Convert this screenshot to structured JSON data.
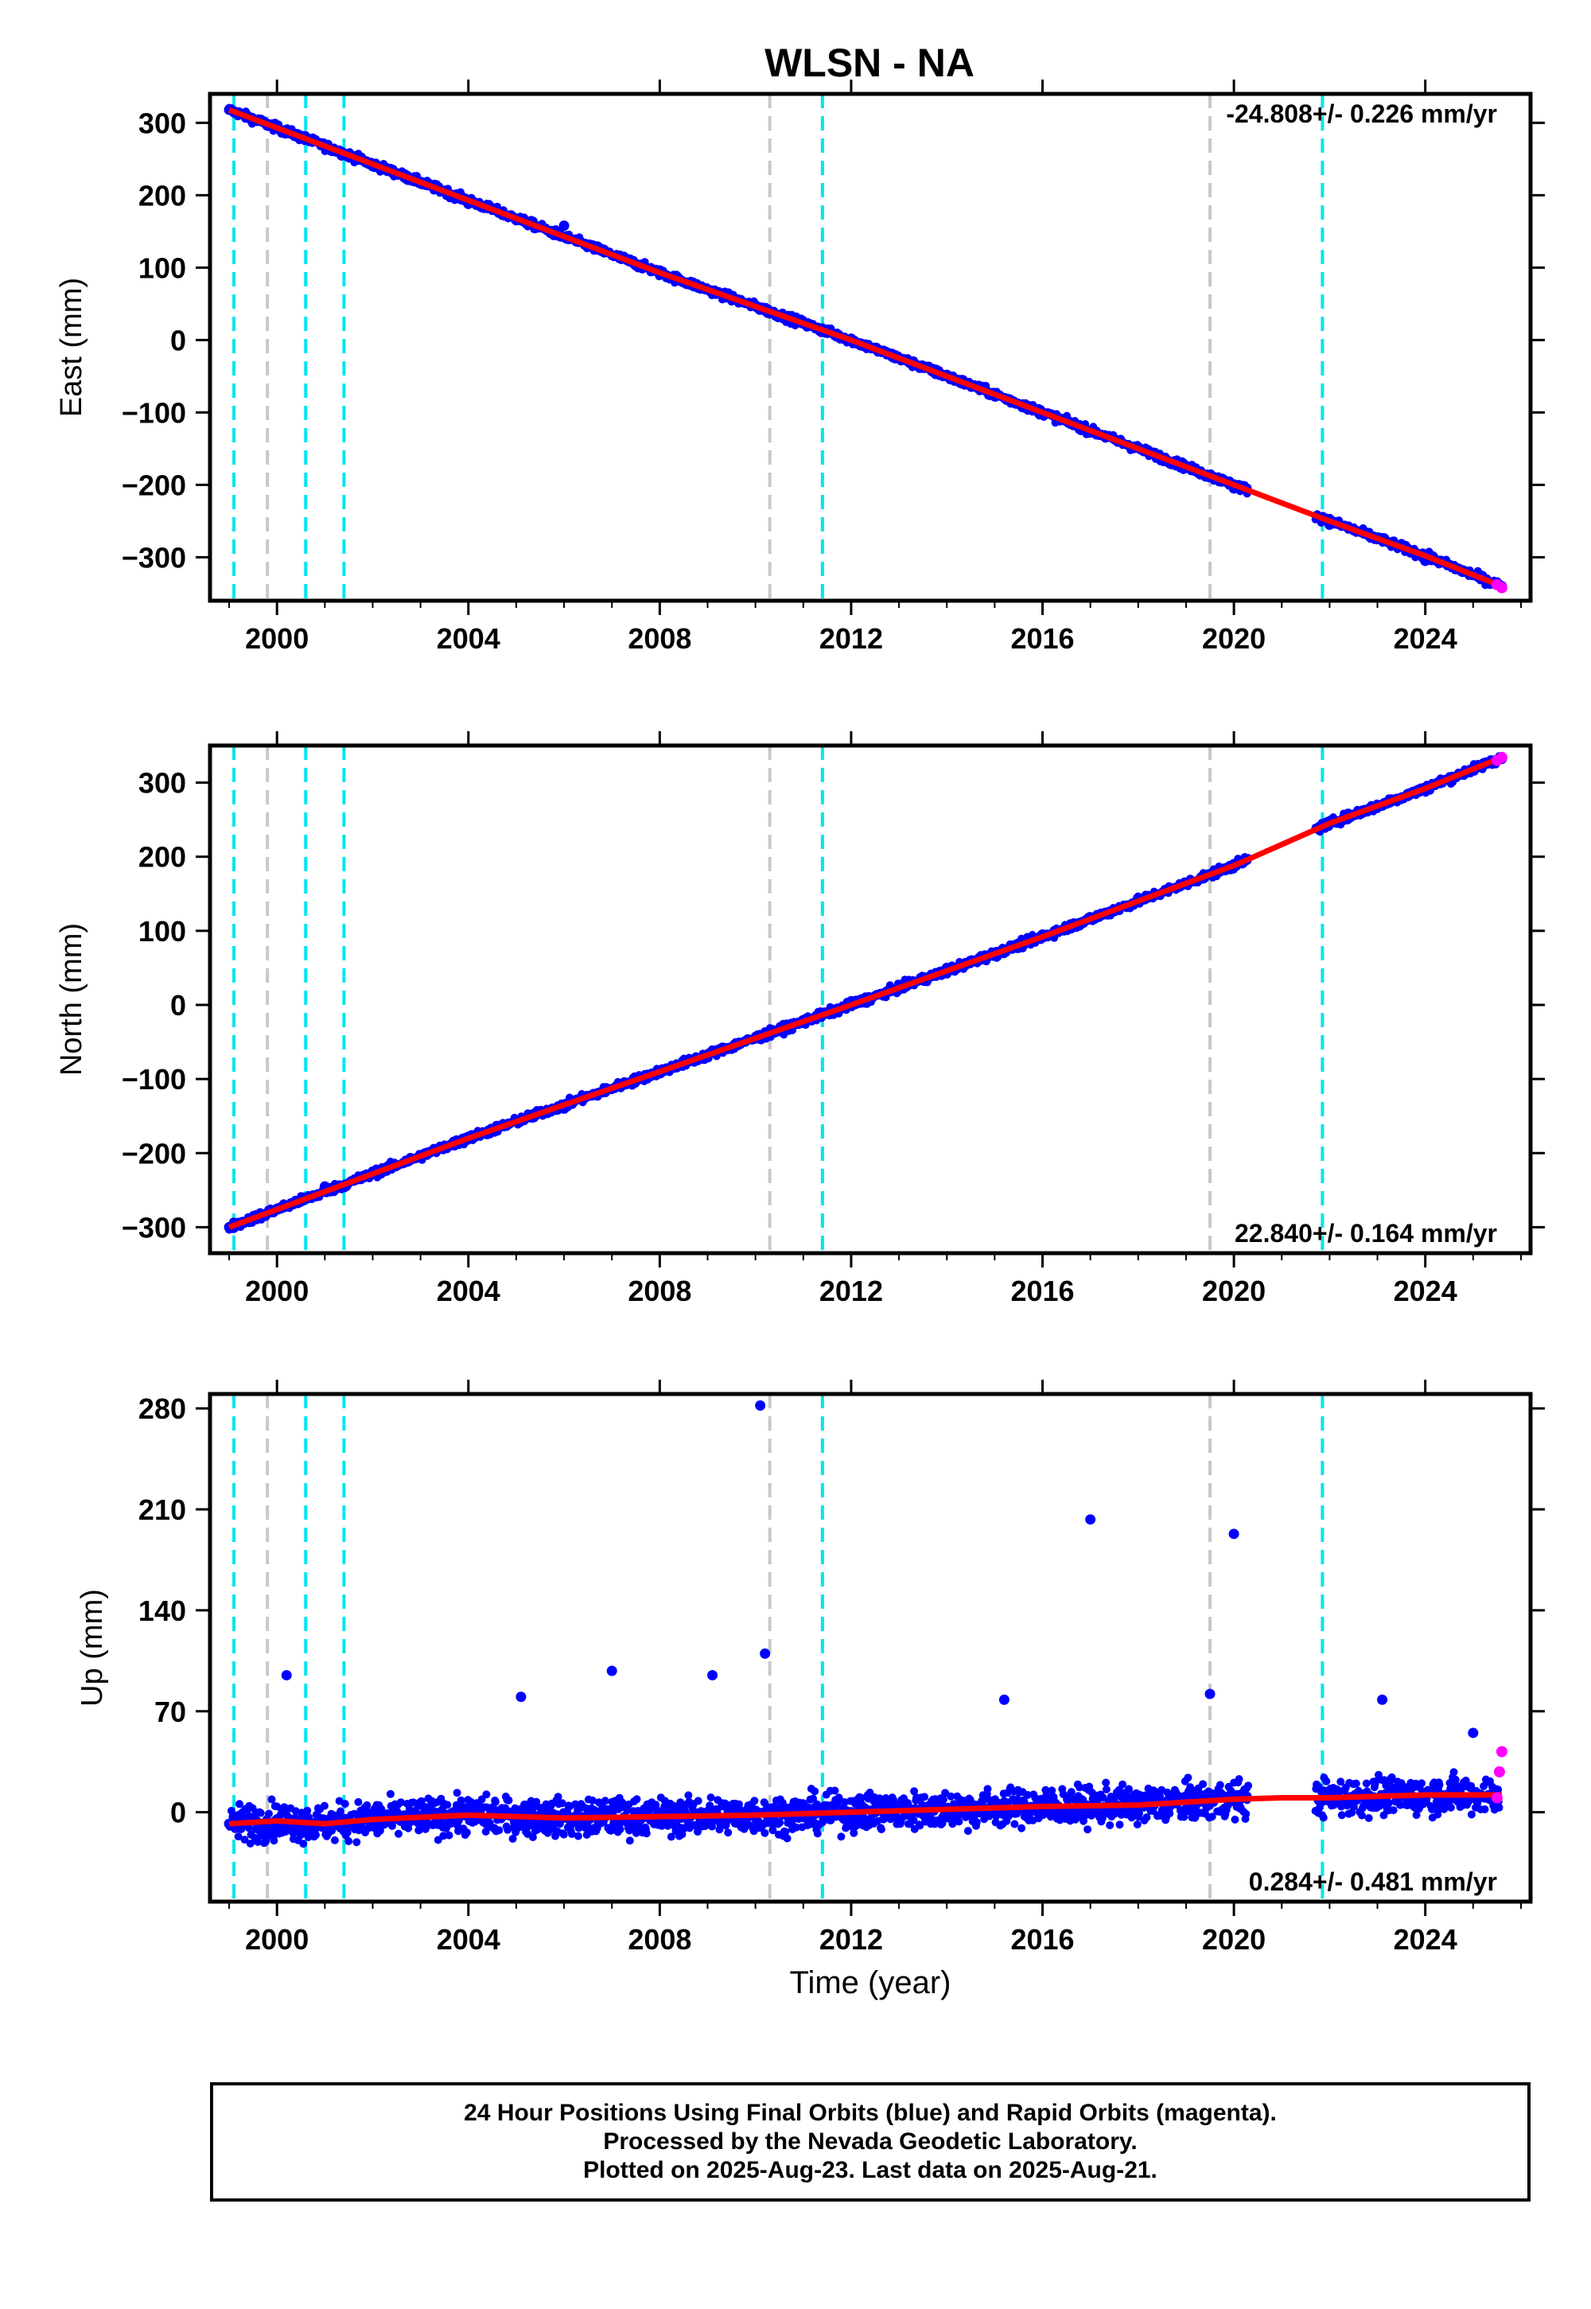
{
  "figure_title": "WLSN - NA",
  "colors": {
    "final_orbits": "#0000ff",
    "rapid_orbits": "#ff00ff",
    "model_fit": "#ff0000",
    "equipment_change": "#00e5ee",
    "earthquake_marker": "#c8c8c8"
  },
  "footer": {
    "line1": "24 Hour Positions Using Final Orbits (blue) and Rapid Orbits (magenta).",
    "line2": "Processed by the Nevada Geodetic Laboratory.",
    "line3": "Plotted on 2025-Aug-23. Last data on 2025-Aug-21."
  },
  "chart_data": [
    {
      "type": "scatter",
      "title": "WLSN - NA",
      "ylabel": "East (mm)",
      "xlabel": "",
      "xlim": [
        1998.6,
        2026.2
      ],
      "ylim": [
        -360,
        340
      ],
      "x_ticks": [
        2000,
        2004,
        2008,
        2012,
        2016,
        2020,
        2024
      ],
      "y_ticks": [
        300,
        200,
        100,
        0,
        -100,
        -200,
        -300
      ],
      "velocity_text": "-24.808+/- 0.226 mm/yr",
      "velocity_text_position": "top-right",
      "cyan_dashed_lines_x": [
        1999.1,
        2000.6,
        2001.4,
        2011.4,
        2021.85
      ],
      "gray_dashed_lines_x": [
        1999.8,
        2010.3,
        2019.5
      ],
      "series": [
        {
          "color": "blue",
          "style": "points",
          "x": [
            1999.0,
            2001.0,
            2002.0,
            2004.0,
            2006.0,
            2008.0,
            2010.0,
            2012.0,
            2014.0,
            2016.0,
            2018.0,
            2020.0,
            2022.0,
            2024.0,
            2025.6
          ],
          "y": [
            318,
            268,
            240,
            188,
            158,
            96,
            48,
            2,
            -48,
            -100,
            -148,
            -205,
            -255,
            -305,
            -340
          ]
        },
        {
          "color": "magenta",
          "style": "points",
          "x": [
            2025.5,
            2025.6
          ],
          "y": [
            -338,
            -342
          ]
        },
        {
          "color": "red",
          "style": "line",
          "x": [
            1999.0,
            2004.0,
            2008.0,
            2012.0,
            2016.0,
            2020.0,
            2022.0,
            2024.0,
            2025.6
          ],
          "y": [
            318,
            193,
            93,
            0,
            -100,
            -200,
            -250,
            -298,
            -340
          ]
        }
      ]
    },
    {
      "type": "scatter",
      "title": "",
      "ylabel": "North (mm)",
      "xlabel": "",
      "xlim": [
        1998.6,
        2026.2
      ],
      "ylim": [
        -335,
        350
      ],
      "x_ticks": [
        2000,
        2004,
        2008,
        2012,
        2016,
        2020,
        2024
      ],
      "y_ticks": [
        300,
        200,
        100,
        0,
        -100,
        -200,
        -300
      ],
      "velocity_text": "22.840+/- 0.164 mm/yr",
      "velocity_text_position": "bottom-right",
      "cyan_dashed_lines_x": [
        1999.1,
        2000.6,
        2001.4,
        2011.4,
        2021.85
      ],
      "gray_dashed_lines_x": [
        1999.8,
        2010.3,
        2019.5
      ],
      "series": [
        {
          "color": "blue",
          "style": "points",
          "x": [
            1999.0,
            2000.0,
            2001.0,
            2002.0,
            2004.0,
            2006.0,
            2008.0,
            2010.0,
            2012.0,
            2014.0,
            2016.0,
            2018.0,
            2020.0,
            2022.0,
            2024.0,
            2025.6
          ],
          "y": [
            -300,
            -275,
            -245,
            -225,
            -178,
            -140,
            -92,
            -45,
            5,
            50,
            95,
            142,
            190,
            245,
            290,
            332
          ]
        },
        {
          "color": "magenta",
          "style": "points",
          "x": [
            2025.5,
            2025.6
          ],
          "y": [
            330,
            334
          ]
        },
        {
          "color": "red",
          "style": "line",
          "x": [
            1999.0,
            2002.0,
            2004.0,
            2008.0,
            2012.0,
            2016.0,
            2020.0,
            2022.0,
            2024.0,
            2025.6
          ],
          "y": [
            -300,
            -228,
            -180,
            -90,
            0,
            92,
            188,
            245,
            292,
            334
          ]
        }
      ]
    },
    {
      "type": "scatter",
      "title": "",
      "ylabel": "Up (mm)",
      "xlabel": "Time (year)",
      "xlim": [
        1998.6,
        2026.2
      ],
      "ylim": [
        -62,
        290
      ],
      "x_ticks": [
        2000,
        2004,
        2008,
        2012,
        2016,
        2020,
        2024
      ],
      "y_ticks": [
        280,
        210,
        140,
        70,
        0
      ],
      "velocity_text": "0.284+/- 0.481 mm/yr",
      "velocity_text_position": "bottom-right",
      "cyan_dashed_lines_x": [
        1999.1,
        2000.6,
        2001.4,
        2011.4,
        2021.85
      ],
      "gray_dashed_lines_x": [
        1999.8,
        2010.3,
        2019.5
      ],
      "series": [
        {
          "color": "blue",
          "style": "points",
          "x": [
            1999.0,
            2000.0,
            2000.2,
            2001.0,
            2002.0,
            2004.0,
            2005.1,
            2007.0,
            2008.0,
            2009.1,
            2010.1,
            2010.2,
            2012.0,
            2014.0,
            2015.2,
            2016.0,
            2017.0,
            2018.0,
            2019.5,
            2020.0,
            2022.0,
            2023.1,
            2024.0,
            2025.0
          ],
          "y": [
            -8,
            -5,
            95,
            -6,
            -5,
            0,
            80,
            98,
            -3,
            95,
            282,
            110,
            0,
            2,
            78,
            3,
            203,
            5,
            82,
            193,
            10,
            78,
            12,
            55
          ]
        },
        {
          "color": "magenta",
          "style": "points",
          "x": [
            2025.5,
            2025.55,
            2025.6
          ],
          "y": [
            10,
            28,
            42
          ]
        },
        {
          "color": "red",
          "style": "line",
          "x": [
            1999.0,
            2000.0,
            2001.0,
            2002.0,
            2004.0,
            2006.0,
            2008.0,
            2010.0,
            2012.0,
            2014.0,
            2016.0,
            2018.0,
            2020.0,
            2021.0,
            2022.0,
            2024.0,
            2025.6
          ],
          "y": [
            -8,
            -6,
            -8,
            -5,
            -2,
            -4,
            -3,
            -2,
            0,
            2,
            4,
            5,
            9,
            10,
            10,
            12,
            12
          ]
        }
      ]
    }
  ]
}
